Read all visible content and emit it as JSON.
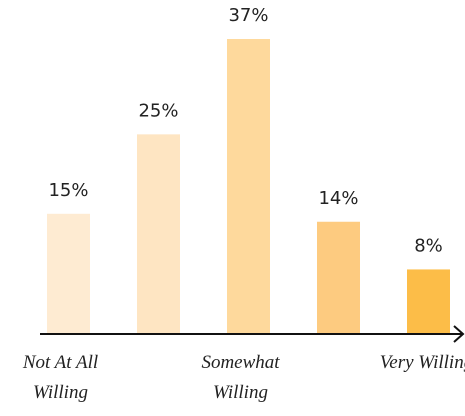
{
  "chart_data": {
    "type": "bar",
    "categories": [
      "Not At All Willing",
      null,
      "Somewhat Willing",
      null,
      "Very Willing"
    ],
    "values": [
      15,
      25,
      37,
      14,
      8
    ],
    "value_labels": [
      "15%",
      "25%",
      "37%",
      "14%",
      "8%"
    ],
    "colors": [
      "#feebd2",
      "#fee5c2",
      "#fed99c",
      "#fdcb80",
      "#fcbd48"
    ]
  }
}
